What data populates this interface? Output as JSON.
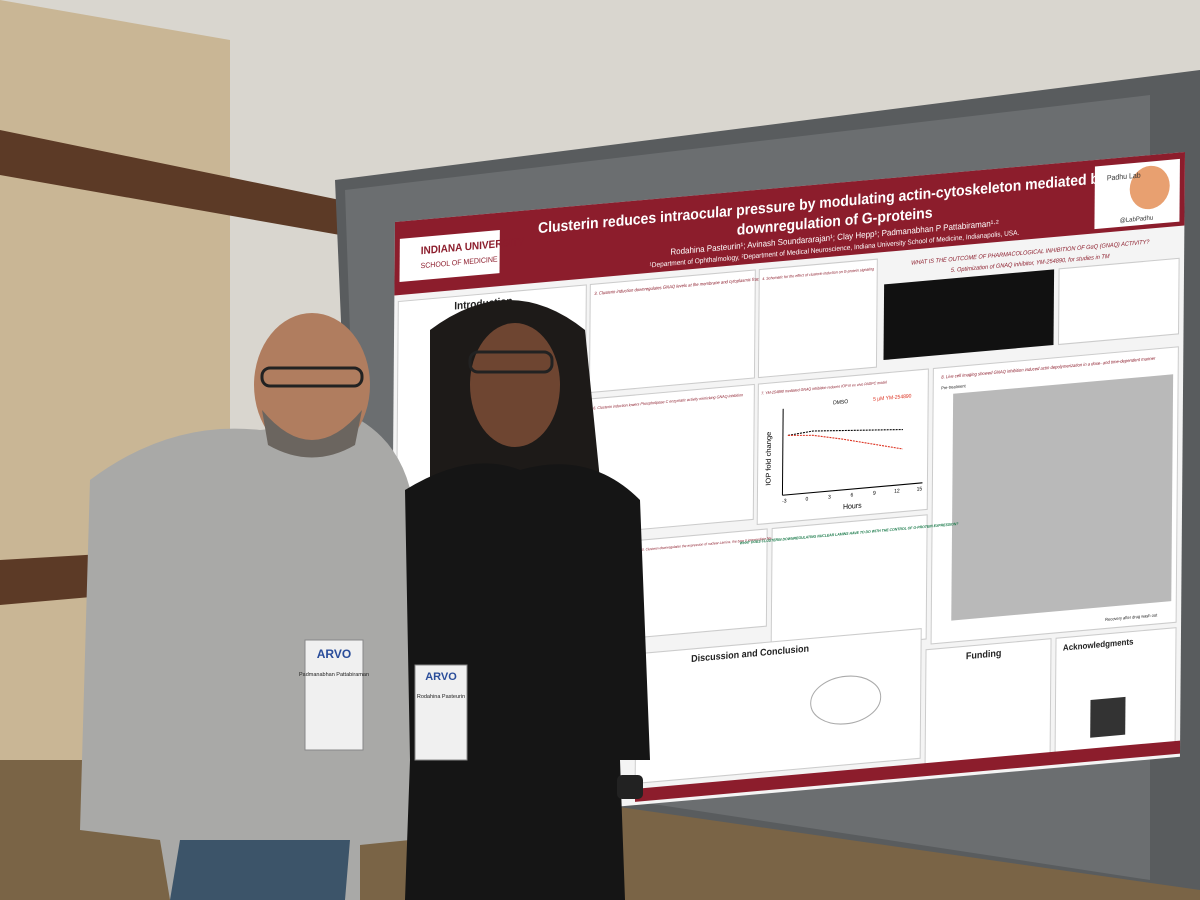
{
  "poster": {
    "title_lines": [
      "Clusterin reduces intraocular pressure by modulating actin-cytoskeleton mediated by the",
      "downregulation of G-proteins"
    ],
    "authors": "Rodahina Pasteurin¹; Avinash Soundararajan¹; Clay Hepp¹; Padmanabhan P Pattabiraman¹·²",
    "affiliations": "¹Department of Ophthalmology, ²Department of Medical Neuroscience, Indiana University School of Medicine, Indianapolis, USA.",
    "institution": [
      "INDIANA UNIVERSITY",
      "SCHOOL OF MEDICINE"
    ],
    "lab": "Padhu Lab",
    "handle": "@LabPadhu",
    "sections": {
      "introduction": "Introduction",
      "s3": "3. Clusterin induction downregulates GNAQ levels at the membrane and cytoplasmic fractions",
      "s4": "4. Schematic for the effect of clusterin induction on G-protein signaling",
      "question_1": "WHAT IS THE OUTCOME OF PHARMACOLOGICAL INHIBITION OF GαQ (GNAQ) ACTIVITY?",
      "s5": "5. Optimization of GNAQ inhibitor, YM-254890, for studies in TM",
      "s6": "6. Clusterin induction lowers Phospholipase C enzymatic activity mimicking GNAQ inhibition",
      "s7": "7. YM-254890 mediated GNAQ inhibition reduces IOP in ex vivo PASPC model",
      "s8": "8. Live cell imaging showed GNAQ inhibition induced actin depolymerization in a dose- and time-dependent manner",
      "s10": "10. Clusterin downregulates the expression of nuclear Lamins, the type V intermediate filament",
      "question_2": "WHAT DOES CLUSTERIN DOWNREGULATING NUCLEAR LAMINS HAVE TO DO WITH THE CONTROL OF G-PROTEIN EXPRESSION?",
      "discussion": "Discussion and Conclusion",
      "funding": "Funding",
      "acknowledgments": "Acknowledgments"
    },
    "graph": {
      "y_label": "IOP fold change",
      "x_label": "Hours",
      "legend": [
        "DMSO",
        "5 µM YM-254890"
      ],
      "x_ticks": [
        "-3",
        "0",
        "3",
        "6",
        "9",
        "12",
        "15"
      ]
    },
    "live_imaging": {
      "pre": "Pre-treatment",
      "recovery": "Recovery after drug wash out"
    }
  },
  "badges": [
    {
      "brand": "ARVO",
      "name": "Padmanabhan Pattabiraman"
    },
    {
      "brand": "ARVO",
      "name": "Rodahina Pasteurin"
    }
  ]
}
